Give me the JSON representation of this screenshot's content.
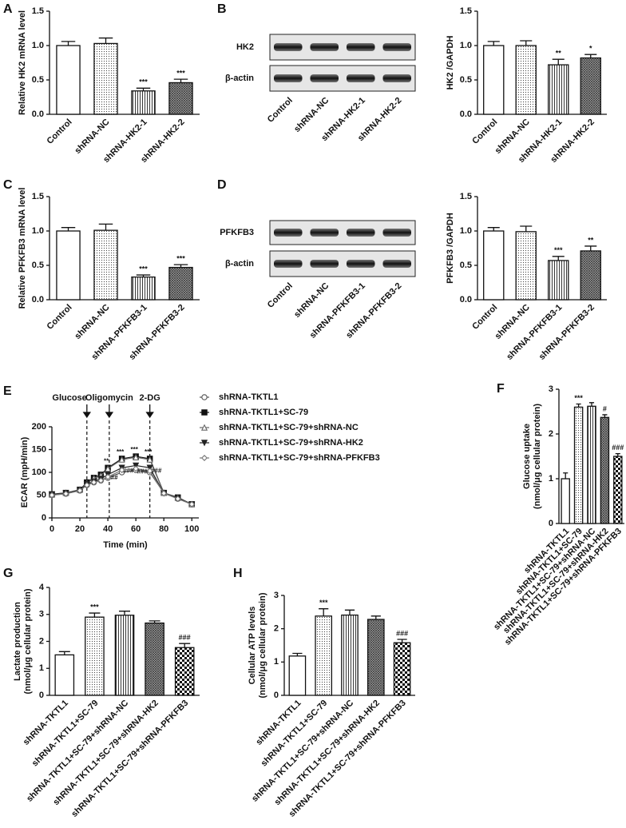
{
  "chart_data": [
    {
      "type": "bar",
      "panel": "A",
      "ylabel": "Relative HK2 mRNA level",
      "categories": [
        "Control",
        "shRNA-NC",
        "shRNA-HK2-1",
        "shRNA-HK2-2"
      ],
      "values": [
        1.0,
        1.03,
        0.34,
        0.46
      ],
      "errors": [
        0.06,
        0.08,
        0.04,
        0.05
      ],
      "annotations": [
        null,
        null,
        "***",
        "***"
      ],
      "fills": [
        "white",
        "dots",
        "vlines",
        "hatch"
      ],
      "ylim": [
        0,
        1.5
      ],
      "yticks": [
        {
          "value": 0,
          "label": "0.0"
        },
        0.5,
        {
          "value": 1,
          "label": "1.0"
        },
        1.5
      ]
    },
    {
      "type": "blot",
      "panel": "B",
      "rows": [
        "HK2",
        "β-actin"
      ],
      "categories": [
        "Control",
        "shRNA-NC",
        "shRNA-HK2-1",
        "shRNA-HK2-2"
      ]
    },
    {
      "type": "bar",
      "ylabel": "HK2 /GAPDH",
      "categories": [
        "Control",
        "shRNA-NC",
        "shRNA-HK2-1",
        "shRNA-HK2-2"
      ],
      "values": [
        1.0,
        1.0,
        0.72,
        0.82
      ],
      "errors": [
        0.06,
        0.07,
        0.08,
        0.05
      ],
      "annotations": [
        null,
        null,
        "**",
        "*"
      ],
      "fills": [
        "white",
        "dots",
        "vlines",
        "hatch"
      ],
      "ylim": [
        0,
        1.5
      ],
      "yticks": [
        {
          "value": 0,
          "label": "0.0"
        },
        0.5,
        {
          "value": 1,
          "label": "1.0"
        },
        1.5
      ]
    },
    {
      "type": "bar",
      "panel": "C",
      "ylabel": "Relative PFKFB3 mRNA level",
      "categories": [
        "Control",
        "shRNA-NC",
        "shRNA-PFKFB3-1",
        "shRNA-PFKFB3-2"
      ],
      "values": [
        1.0,
        1.01,
        0.33,
        0.47
      ],
      "errors": [
        0.05,
        0.09,
        0.03,
        0.04
      ],
      "annotations": [
        null,
        null,
        "***",
        "***"
      ],
      "fills": [
        "white",
        "dots",
        "vlines",
        "hatch"
      ],
      "ylim": [
        0,
        1.5
      ],
      "yticks": [
        {
          "value": 0,
          "label": "0.0"
        },
        0.5,
        {
          "value": 1,
          "label": "1.0"
        },
        1.5
      ]
    },
    {
      "type": "blot",
      "panel": "D",
      "rows": [
        "PFKFB3",
        "β-actin"
      ],
      "categories": [
        "Control",
        "shRNA-NC",
        "shRNA-PFKFB3-1",
        "shRNA-PFKFB3-2"
      ]
    },
    {
      "type": "bar",
      "ylabel": "PFKFB3 /GAPDH",
      "categories": [
        "Control",
        "shRNA-NC",
        "shRNA-PFKFB3-1",
        "shRNA-PFKFB3-2"
      ],
      "values": [
        1.0,
        0.99,
        0.57,
        0.71
      ],
      "errors": [
        0.05,
        0.08,
        0.06,
        0.07
      ],
      "annotations": [
        null,
        null,
        "***",
        "**"
      ],
      "fills": [
        "white",
        "dots",
        "vlines",
        "hatch"
      ],
      "ylim": [
        0,
        1.5
      ],
      "yticks": [
        {
          "value": 0,
          "label": "0.0"
        },
        0.5,
        {
          "value": 1,
          "label": "1.0"
        },
        1.5
      ]
    },
    {
      "type": "line",
      "panel": "E",
      "xlabel": "Time (min)",
      "ylabel": "ECAR (mpH/min)",
      "x": [
        0,
        10,
        20,
        25,
        30,
        35,
        40,
        50,
        60,
        70,
        80,
        90,
        100
      ],
      "events": [
        {
          "label": "Glucose",
          "x": 25
        },
        {
          "label": "Oligomycin",
          "x": 41
        },
        {
          "label": "2-DG",
          "x": 70
        }
      ],
      "series": [
        {
          "name": "shRNA-TKTL1",
          "marker": "circle",
          "color": "#555",
          "values": [
            50,
            53,
            60,
            72,
            78,
            82,
            88,
            100,
            105,
            100,
            55,
            42,
            30
          ],
          "point_labels": [
            null,
            null,
            null,
            null,
            null,
            null,
            null,
            null,
            null,
            null,
            null,
            null,
            null
          ]
        },
        {
          "name": "shRNA-TKTL1+SC-79",
          "marker": "square",
          "color": "#111",
          "values": [
            52,
            55,
            62,
            78,
            88,
            95,
            110,
            130,
            135,
            130,
            55,
            45,
            30
          ],
          "point_labels": [
            null,
            null,
            null,
            null,
            null,
            null,
            "**",
            "***",
            "***",
            "***",
            null,
            null,
            null
          ]
        },
        {
          "name": "shRNA-TKTL1+SC-79+shRNA-NC",
          "marker": "triangle",
          "color": "#666",
          "values": [
            51,
            55,
            62,
            76,
            87,
            93,
            108,
            128,
            133,
            128,
            55,
            44,
            30
          ],
          "point_labels": [
            null,
            null,
            null,
            null,
            null,
            null,
            null,
            null,
            null,
            null,
            null,
            null,
            null
          ]
        },
        {
          "name": "shRNA-TKTL1+SC-79+shRNA-HK2",
          "marker": "tridown",
          "color": "#222",
          "values": [
            51,
            54,
            61,
            74,
            80,
            86,
            95,
            110,
            115,
            110,
            54,
            43,
            30
          ],
          "point_labels": [
            null,
            null,
            null,
            null,
            null,
            null,
            "##",
            "###",
            null,
            "###",
            null,
            null,
            null
          ]
        },
        {
          "name": "shRNA-TKTL1+SC-79+shRNA-PFKFB3",
          "marker": "diamond",
          "color": "#777",
          "values": [
            50,
            53,
            60,
            72,
            78,
            82,
            90,
            105,
            108,
            103,
            54,
            42,
            30
          ],
          "point_labels": [
            null,
            null,
            null,
            null,
            null,
            null,
            null,
            null,
            "###",
            null,
            null,
            null,
            null
          ]
        }
      ],
      "xlim": [
        0,
        105
      ],
      "xticks": [
        0,
        20,
        40,
        60,
        80,
        100
      ],
      "ylim": [
        0,
        200
      ],
      "yticks": [
        0,
        50,
        100,
        150,
        200
      ]
    },
    {
      "type": "bar",
      "panel": "F",
      "ylabel": [
        "Glucose uptake",
        "(nmol/μg cellular protein)"
      ],
      "categories": [
        "shRNA-TKTL1",
        "shRNA-TKTL1+SC-79",
        "shRNA-TKTL1+SC-79+shRNA-NC",
        "shRNA-TKTL1+SC-79+shRNA-HK2",
        "shRNA-TKTL1+SC-79+shRNA-PFKFB3"
      ],
      "values": [
        1.0,
        2.6,
        2.62,
        2.37,
        1.5
      ],
      "errors": [
        0.13,
        0.07,
        0.08,
        0.06,
        0.06
      ],
      "annotations": [
        null,
        "***",
        null,
        "#",
        "###"
      ],
      "fills": [
        "white",
        "dots",
        "vlines",
        "hatch",
        "check"
      ],
      "ylim": [
        0,
        3
      ],
      "yticks": [
        0,
        1,
        2,
        3
      ]
    },
    {
      "type": "bar",
      "panel": "G",
      "ylabel": [
        "Lactate production",
        "(nmol/μg cellular protein)"
      ],
      "categories": [
        "shRNA-TKTL1",
        "shRNA-TKTL1+SC-79",
        "shRNA-TKTL1+SC-79+shRNA-NC",
        "shRNA-TKTL1+SC-79+shRNA-HK2",
        "shRNA-TKTL1+SC-79+shRNA-PFKFB3"
      ],
      "values": [
        1.5,
        2.9,
        2.97,
        2.68,
        1.77
      ],
      "errors": [
        0.12,
        0.15,
        0.15,
        0.08,
        0.15
      ],
      "annotations": [
        null,
        "***",
        null,
        null,
        "###"
      ],
      "fills": [
        "white",
        "dots",
        "vlines",
        "hatch",
        "check"
      ],
      "ylim": [
        0,
        4
      ],
      "yticks": [
        0,
        1,
        2,
        3,
        4
      ]
    },
    {
      "type": "bar",
      "panel": "H",
      "ylabel": [
        "Cellular ATP levels",
        "(nmol/μg cellular protein)"
      ],
      "categories": [
        "shRNA-TKTL1",
        "shRNA-TKTL1+SC-79",
        "shRNA-TKTL1+SC-79+shRNA-NC",
        "shRNA-TKTL1+SC-79+shRNA-HK2",
        "shRNA-TKTL1+SC-79+shRNA-PFKFB3"
      ],
      "values": [
        1.18,
        2.38,
        2.41,
        2.28,
        1.58
      ],
      "errors": [
        0.08,
        0.22,
        0.15,
        0.1,
        0.1
      ],
      "annotations": [
        null,
        "***",
        null,
        null,
        "###"
      ],
      "fills": [
        "white",
        "dots",
        "vlines",
        "hatch",
        "check"
      ],
      "ylim": [
        0,
        3
      ],
      "yticks": [
        0,
        1,
        2,
        3
      ]
    }
  ]
}
